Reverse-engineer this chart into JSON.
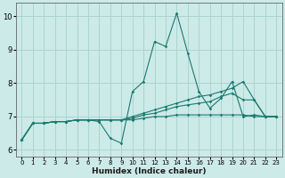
{
  "xlabel": "Humidex (Indice chaleur)",
  "background_color": "#cceae8",
  "grid_color": "#aad4d2",
  "line_color": "#1a7a6e",
  "xlim": [
    -0.5,
    23.5
  ],
  "ylim": [
    5.8,
    10.4
  ],
  "yticks": [
    6,
    7,
    8,
    9,
    10
  ],
  "xticks": [
    0,
    1,
    2,
    3,
    4,
    5,
    6,
    7,
    8,
    9,
    10,
    11,
    12,
    13,
    14,
    15,
    16,
    17,
    18,
    19,
    20,
    21,
    22,
    23
  ],
  "series": [
    {
      "x": [
        0,
        1,
        2,
        3,
        4,
        5,
        6,
        7,
        8,
        9,
        10,
        11,
        12,
        13,
        14,
        15,
        16,
        17,
        18,
        19,
        20,
        21,
        22,
        23
      ],
      "y": [
        6.3,
        6.8,
        6.8,
        6.85,
        6.85,
        6.9,
        6.9,
        6.85,
        6.35,
        6.2,
        7.75,
        8.05,
        9.25,
        9.1,
        10.1,
        8.9,
        7.75,
        7.25,
        7.55,
        8.05,
        7.0,
        7.05,
        7.0,
        7.0
      ]
    },
    {
      "x": [
        0,
        1,
        2,
        3,
        4,
        5,
        6,
        7,
        8,
        9,
        10,
        11,
        12,
        13,
        14,
        15,
        16,
        17,
        18,
        19,
        20,
        21,
        22,
        23
      ],
      "y": [
        6.3,
        6.8,
        6.8,
        6.85,
        6.85,
        6.9,
        6.9,
        6.9,
        6.9,
        6.9,
        7.0,
        7.1,
        7.2,
        7.3,
        7.4,
        7.5,
        7.6,
        7.65,
        7.75,
        7.85,
        8.05,
        7.5,
        7.0,
        7.0
      ]
    },
    {
      "x": [
        0,
        1,
        2,
        3,
        4,
        5,
        6,
        7,
        8,
        9,
        10,
        11,
        12,
        13,
        14,
        15,
        16,
        17,
        18,
        19,
        20,
        21,
        22,
        23
      ],
      "y": [
        6.3,
        6.8,
        6.8,
        6.85,
        6.85,
        6.9,
        6.9,
        6.9,
        6.9,
        6.9,
        6.95,
        7.05,
        7.1,
        7.2,
        7.3,
        7.35,
        7.4,
        7.45,
        7.6,
        7.7,
        7.5,
        7.5,
        7.0,
        7.0
      ]
    },
    {
      "x": [
        0,
        1,
        2,
        3,
        4,
        5,
        6,
        7,
        8,
        9,
        10,
        11,
        12,
        13,
        14,
        15,
        16,
        17,
        18,
        19,
        20,
        21,
        22,
        23
      ],
      "y": [
        6.3,
        6.8,
        6.8,
        6.85,
        6.85,
        6.9,
        6.9,
        6.9,
        6.9,
        6.9,
        6.9,
        6.95,
        7.0,
        7.0,
        7.05,
        7.05,
        7.05,
        7.05,
        7.05,
        7.05,
        7.05,
        7.0,
        7.0,
        7.0
      ]
    }
  ]
}
